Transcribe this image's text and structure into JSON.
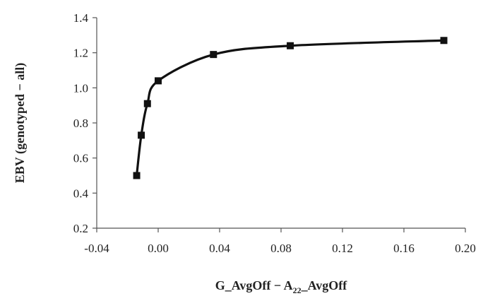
{
  "chart_data": {
    "type": "scatter",
    "title": "",
    "xlabel": "G_AvgOff − A",
    "xlabel_subscript": "22",
    "xlabel_suffix": "_AvgOff",
    "ylabel": "EBV (genotyped − all)",
    "xlim": [
      -0.04,
      0.2
    ],
    "ylim": [
      0.2,
      1.4
    ],
    "x_ticks": [
      -0.04,
      0.0,
      0.04,
      0.08,
      0.12,
      0.16,
      0.2
    ],
    "x_tick_labels": [
      "-0.04",
      "0.00",
      "0.04",
      "0.08",
      "0.12",
      "0.16",
      "0.20"
    ],
    "y_ticks": [
      0.2,
      0.4,
      0.6,
      0.8,
      1.0,
      1.2,
      1.4
    ],
    "y_tick_labels": [
      "0.2",
      "0.4",
      "0.6",
      "0.8",
      "1.0",
      "1.2",
      "1.4"
    ],
    "grid": false,
    "legend": "none",
    "series": [
      {
        "marker": "square",
        "line": "smooth",
        "color": "#111111",
        "x": [
          -0.014,
          -0.011,
          -0.007,
          0.0,
          0.036,
          0.086,
          0.186
        ],
        "y": [
          0.5,
          0.73,
          0.91,
          1.04,
          1.19,
          1.24,
          1.27
        ]
      }
    ]
  }
}
